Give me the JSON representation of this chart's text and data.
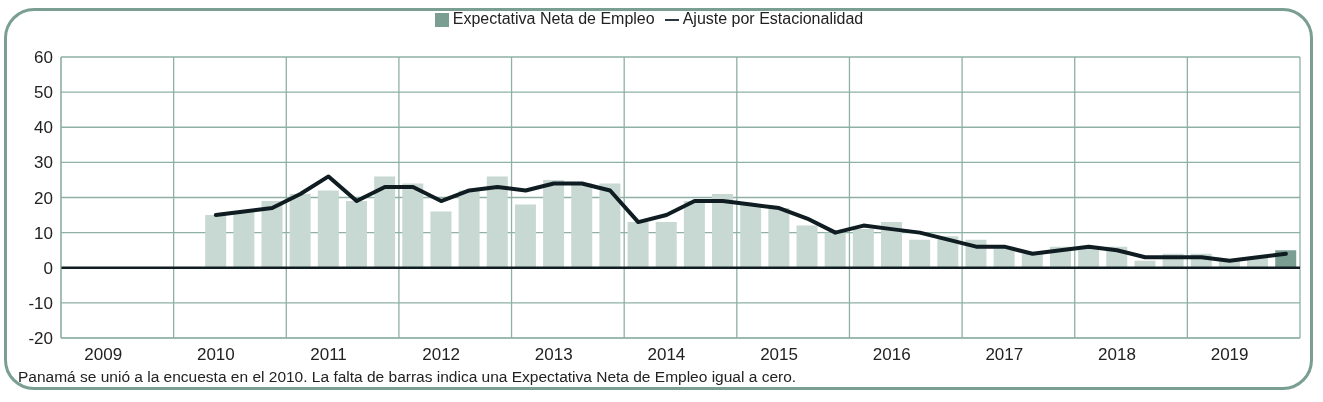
{
  "chart_data": {
    "type": "bar",
    "categories": [
      null,
      "2009",
      null,
      null,
      null,
      "2010",
      null,
      null,
      null,
      "2011",
      null,
      null,
      null,
      "2012",
      null,
      null,
      null,
      "2013",
      null,
      null,
      null,
      "2014",
      null,
      null,
      null,
      "2015",
      null,
      null,
      null,
      "2016",
      null,
      null,
      null,
      "2017",
      null,
      null,
      null,
      "2018",
      null,
      null,
      null,
      "2019",
      null,
      null
    ],
    "series": [
      {
        "name": "Expectativa Neta de Empleo",
        "color": "#7a9e92",
        "colors": [
          "#c8d8d2",
          "#c8d8d2",
          "#c8d8d2",
          "#c8d8d2",
          "#c8d8d2",
          "#c8d8d2",
          "#c8d8d2",
          "#c8d8d2",
          "#c8d8d2",
          "#c8d8d2",
          "#c8d8d2",
          "#c8d8d2",
          "#c8d8d2",
          "#c8d8d2",
          "#c8d8d2",
          "#c8d8d2",
          "#c8d8d2",
          "#c8d8d2",
          "#c8d8d2",
          "#c8d8d2",
          "#c8d8d2",
          "#c8d8d2",
          "#c8d8d2",
          "#c8d8d2",
          "#c8d8d2",
          "#c8d8d2",
          "#c8d8d2",
          "#c8d8d2",
          "#c8d8d2",
          "#c8d8d2",
          "#c8d8d2",
          "#c8d8d2",
          "#c8d8d2",
          "#c8d8d2",
          "#c8d8d2",
          "#c8d8d2",
          "#c8d8d2",
          "#c8d8d2",
          "#c8d8d2",
          "#c8d8d2",
          "#c8d8d2",
          "#c8d8d2",
          "#c8d8d2",
          "#7a9e92"
        ],
        "values": [
          null,
          null,
          null,
          null,
          null,
          15,
          16,
          19,
          21,
          22,
          19,
          26,
          24,
          16,
          22,
          26,
          18,
          25,
          24,
          24,
          13,
          13,
          19,
          21,
          18,
          17,
          12,
          10,
          11,
          13,
          8,
          9,
          8,
          6,
          4,
          6,
          6,
          6,
          2,
          4,
          4,
          2,
          3,
          5
        ]
      },
      {
        "name": "Ajuste por Estacionalidad",
        "type": "line",
        "color": "#0f1c22",
        "values": [
          null,
          null,
          null,
          null,
          null,
          15,
          16,
          17,
          21,
          26,
          19,
          23,
          23,
          19,
          22,
          23,
          22,
          24,
          24,
          22,
          13,
          15,
          19,
          19,
          18,
          17,
          14,
          10,
          12,
          11,
          10,
          8,
          6,
          6,
          4,
          5,
          6,
          5,
          3,
          3,
          3,
          2,
          3,
          4
        ]
      }
    ],
    "ylim": [
      -20,
      60
    ],
    "yticks": [
      -20,
      -10,
      0,
      10,
      20,
      30,
      40,
      50,
      60
    ],
    "grid": true,
    "legend": "top",
    "ref_lines": [
      {
        "axis": "y",
        "value": 0,
        "color": "#0f1c22"
      }
    ],
    "annotations": [
      "Panamá se unió a la encuesta en el 2010.  La falta de barras indica una Expectativa Neta de Empleo igual a cero."
    ]
  }
}
